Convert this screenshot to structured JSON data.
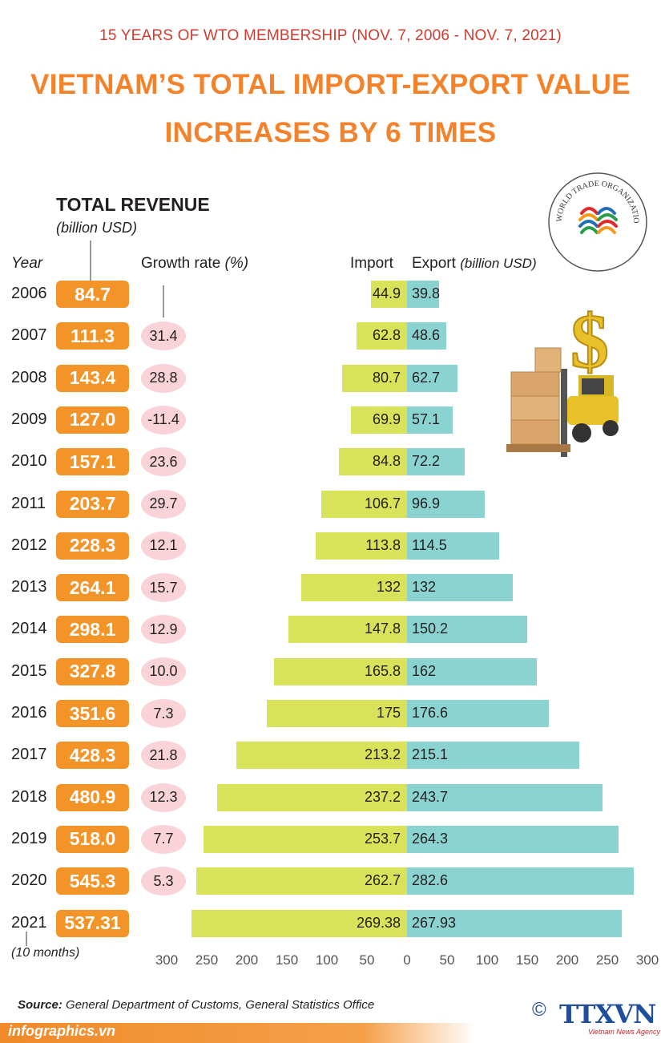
{
  "header": {
    "subtitle": "15 YEARS OF WTO MEMBERSHIP (NOV. 7, 2006 - NOV. 7, 2021)",
    "title_line1": "VIETNAM’S TOTAL IMPORT-EXPORT VALUE",
    "title_line2": "INCREASES BY 6 TIMES"
  },
  "legend": {
    "total_revenue": "TOTAL REVENUE",
    "total_unit": "(billion USD)",
    "year": "Year",
    "growth_rate": "Growth rate",
    "growth_unit": "(%)",
    "import": "Import",
    "export": "Export",
    "export_unit": "(billion USD)",
    "ten_months": "(10 months)"
  },
  "wto_logo_text": "WORLD TRADE ORGANIZATION",
  "chart_data": {
    "type": "bar",
    "title": "VIETNAM’S TOTAL IMPORT-EXPORT VALUE INCREASES BY 6 TIMES",
    "categories": [
      "2006",
      "2007",
      "2008",
      "2009",
      "2010",
      "2011",
      "2012",
      "2013",
      "2014",
      "2015",
      "2016",
      "2017",
      "2018",
      "2019",
      "2020",
      "2021"
    ],
    "series": [
      {
        "name": "Import",
        "values": [
          "44.9",
          "62.8",
          "80.7",
          "69.9",
          "84.8",
          "106.7",
          "113.8",
          "132",
          "147.8",
          "165.8",
          "175",
          "213.2",
          "237.2",
          "253.7",
          "262.7",
          "269.38"
        ],
        "color": "#d8e35a"
      },
      {
        "name": "Export",
        "values": [
          "39.8",
          "48.6",
          "62.7",
          "57.1",
          "72.2",
          "96.9",
          "114.5",
          "132",
          "150.2",
          "162",
          "176.6",
          "215.1",
          "243.7",
          "264.3",
          "282.6",
          "267.93"
        ],
        "color": "#8bd3d0"
      }
    ],
    "total_revenue": [
      "84.7",
      "111.3",
      "143.4",
      "127.0",
      "157.1",
      "203.7",
      "228.3",
      "264.1",
      "298.1",
      "327.8",
      "351.6",
      "428.3",
      "480.9",
      "518.0",
      "545.3",
      "537.31"
    ],
    "growth_rate": [
      "",
      "31.4",
      "28.8",
      "-11.4",
      "23.6",
      "29.7",
      "12.1",
      "15.7",
      "12.9",
      "10.0",
      "7.3",
      "21.8",
      "12.3",
      "7.7",
      "5.3",
      ""
    ],
    "x_ticks_left": [
      "300",
      "250",
      "200",
      "150",
      "100",
      "50"
    ],
    "x_ticks_right": [
      "0",
      "50",
      "100",
      "150",
      "200",
      "250",
      "300"
    ],
    "xlim": [
      0,
      300
    ],
    "accent_colors": {
      "total": "#f39429",
      "growth": "#f9d3d8",
      "title": "#f4822a"
    }
  },
  "source": {
    "label": "Source:",
    "text": " General Department of Customs,  General Statistics Office"
  },
  "footer": {
    "site": "infographics.vn",
    "copyright": "©",
    "brand": "TTXVN",
    "brand_sub": "Vietnam News Agency"
  }
}
